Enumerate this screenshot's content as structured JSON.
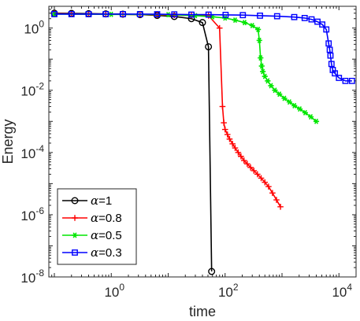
{
  "chart_data": {
    "type": "line",
    "title": "",
    "xlabel": "time",
    "ylabel": "Energy",
    "xscale": "log",
    "yscale": "log",
    "xlim": [
      0.08,
      20000
    ],
    "ylim": [
      1e-08,
      5
    ],
    "xticks": [
      {
        "value": 1,
        "mantissa": "10",
        "exp": "0"
      },
      {
        "value": 100,
        "mantissa": "10",
        "exp": "2"
      },
      {
        "value": 10000,
        "mantissa": "10",
        "exp": "4"
      }
    ],
    "yticks": [
      {
        "value": 1,
        "mantissa": "10",
        "exp": "0"
      },
      {
        "value": 0.01,
        "mantissa": "10",
        "exp": "-2"
      },
      {
        "value": 0.0001,
        "mantissa": "10",
        "exp": "-4"
      },
      {
        "value": 1e-06,
        "mantissa": "10",
        "exp": "-6"
      },
      {
        "value": 1e-08,
        "mantissa": "10",
        "exp": "-8"
      }
    ],
    "grid": false,
    "legend_position": "bottom-left",
    "series": [
      {
        "name": "α=1",
        "label_prefix": "α",
        "label_value": "=1",
        "color": "#000000",
        "marker": "circle",
        "x": [
          0.1,
          0.2,
          0.4,
          0.8,
          1.6,
          3.2,
          6.4,
          12.8,
          25.6,
          40,
          51,
          58
        ],
        "y": [
          3.0,
          2.95,
          2.9,
          2.85,
          2.8,
          2.7,
          2.55,
          2.35,
          2.0,
          1.5,
          0.25,
          1.5e-08
        ]
      },
      {
        "name": "α=0.8",
        "label_prefix": "α",
        "label_value": "=0.8",
        "color": "#ff0000",
        "marker": "plus",
        "x": [
          0.1,
          0.2,
          0.4,
          0.8,
          1.6,
          3.2,
          6.4,
          12.8,
          25.6,
          51.2,
          80,
          90,
          95,
          100,
          110,
          120,
          135,
          150,
          170,
          190,
          215,
          245,
          280,
          320,
          370,
          430,
          500,
          580,
          680,
          800,
          940
        ],
        "y": [
          2.9,
          2.85,
          2.8,
          2.8,
          2.75,
          2.7,
          2.65,
          2.6,
          2.55,
          2.5,
          1.0,
          0.003,
          0.0009,
          0.00055,
          0.00038,
          0.00027,
          0.00019,
          0.00014,
          0.0001,
          7.5e-05,
          5.5e-05,
          4.3e-05,
          3.3e-05,
          2.6e-05,
          2e-05,
          1.5e-05,
          1.1e-05,
          8e-06,
          5e-06,
          3e-06,
          1.8e-06
        ]
      },
      {
        "name": "α=0.5",
        "label_prefix": "α",
        "label_value": "=0.5",
        "color": "#00e600",
        "marker": "asterisk",
        "x": [
          0.1,
          1,
          10,
          30,
          60,
          100,
          150,
          220,
          300,
          380,
          400,
          420,
          440,
          460,
          500,
          560,
          640,
          750,
          900,
          1100,
          1350,
          1650,
          2050,
          2550,
          3200,
          4000
        ],
        "y": [
          2.8,
          2.75,
          2.7,
          2.5,
          2.3,
          2.1,
          1.8,
          1.5,
          1.2,
          0.9,
          0.4,
          0.11,
          0.06,
          0.04,
          0.028,
          0.02,
          0.014,
          0.01,
          0.0075,
          0.0055,
          0.0042,
          0.0032,
          0.0025,
          0.0019,
          0.0014,
          0.001
        ]
      },
      {
        "name": "α=0.3",
        "label_prefix": "α",
        "label_value": "=0.3",
        "color": "#0000ff",
        "marker": "square",
        "x": [
          0.1,
          0.2,
          0.4,
          0.8,
          1.6,
          3.2,
          6.4,
          12.8,
          25.6,
          51.2,
          102,
          205,
          410,
          820,
          1640,
          2500,
          3300,
          4200,
          5100,
          6000,
          6600,
          6900,
          7100,
          7400,
          7800,
          8500,
          10000,
          13000,
          17000
        ],
        "y": [
          2.8,
          2.8,
          2.8,
          2.8,
          2.8,
          2.8,
          2.78,
          2.75,
          2.7,
          2.7,
          2.65,
          2.6,
          2.5,
          2.4,
          2.25,
          2.1,
          1.9,
          1.6,
          1.3,
          0.9,
          0.32,
          0.2,
          0.13,
          0.07,
          0.045,
          0.035,
          0.025,
          0.02,
          0.02
        ]
      }
    ]
  }
}
